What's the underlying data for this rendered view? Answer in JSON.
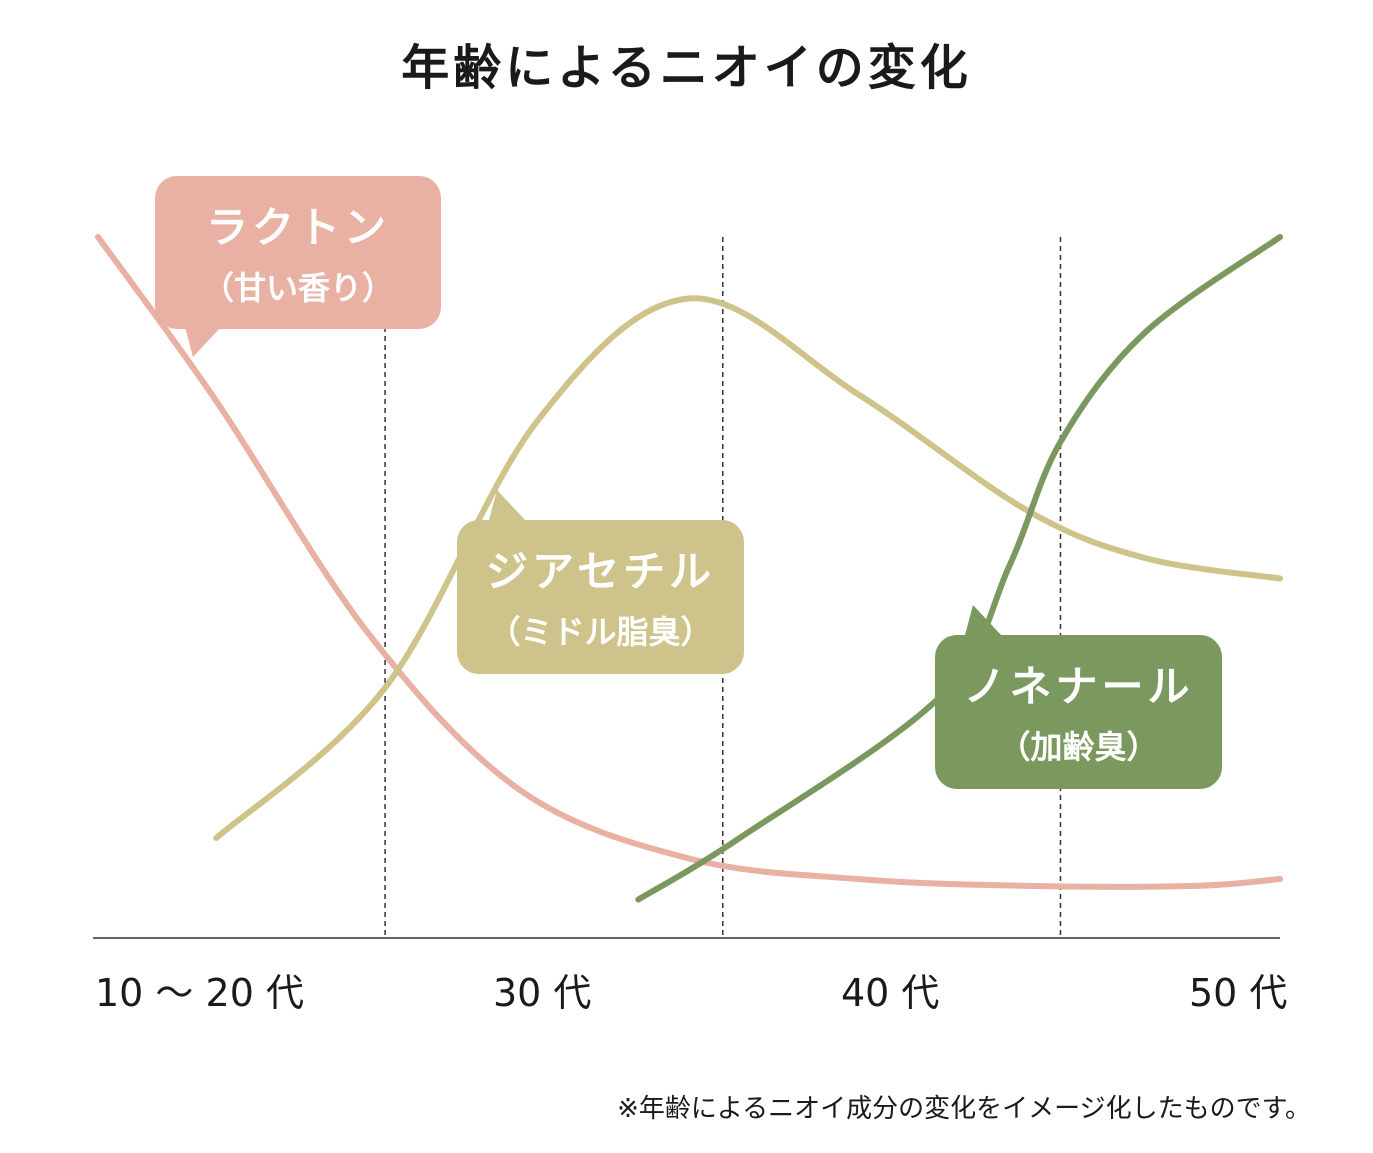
{
  "chart_data": {
    "type": "line",
    "title": "年齢によるニオイの変化",
    "x_ticks": [
      "10 ～ 20 代",
      "30 代",
      "40 代",
      "50 代"
    ],
    "xlim": [
      0,
      3.5
    ],
    "ylim": [
      0,
      10
    ],
    "yaxis_visible": false,
    "grid": "dashed vertical lines at age-group boundaries",
    "dividers_x": [
      0.85,
      1.85,
      2.85
    ],
    "series": [
      {
        "name": "ラクトン",
        "subtitle": "（甘い香り）",
        "color": "#e9b1a4",
        "points": [
          [
            0.0,
            10.0
          ],
          [
            0.35,
            7.6
          ],
          [
            0.8,
            4.2
          ],
          [
            1.25,
            1.9
          ],
          [
            1.75,
            0.9
          ],
          [
            2.25,
            0.6
          ],
          [
            2.75,
            0.5
          ],
          [
            3.25,
            0.5
          ],
          [
            3.5,
            0.6
          ]
        ]
      },
      {
        "name": "ジアセチル",
        "subtitle": "（ミドル脂臭）",
        "color": "#cec38a",
        "points": [
          [
            0.35,
            1.2
          ],
          [
            0.85,
            3.4
          ],
          [
            1.3,
            7.3
          ],
          [
            1.75,
            9.1
          ],
          [
            2.25,
            7.7
          ],
          [
            2.75,
            6.0
          ],
          [
            3.1,
            5.3
          ],
          [
            3.5,
            5.0
          ]
        ]
      },
      {
        "name": "ノネナール",
        "subtitle": "（加齢臭）",
        "color": "#7b985f",
        "points": [
          [
            1.6,
            0.3
          ],
          [
            1.9,
            1.2
          ],
          [
            2.5,
            3.3
          ],
          [
            2.7,
            5.2
          ],
          [
            2.85,
            7.0
          ],
          [
            3.1,
            8.6
          ],
          [
            3.5,
            10.0
          ]
        ]
      }
    ]
  },
  "footnote": "※年齢によるニオイ成分の変化をイメージ化したものです。"
}
